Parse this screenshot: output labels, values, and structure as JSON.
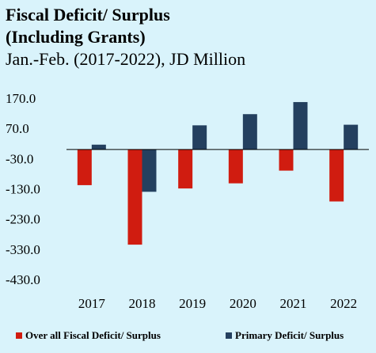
{
  "header": {
    "title_line1": "Fiscal Deficit/ Surplus",
    "title_line2": "(Including Grants)",
    "subtitle": "Jan.-Feb. (2017-2022), JD Million"
  },
  "legend": {
    "series1_label": "Over all Fiscal Deficit/ Surplus",
    "series2_label": "Primary Deficit/ Surplus"
  },
  "colors": {
    "background": "#d9f3fb",
    "series1": "#d01c10",
    "series2": "#24405f"
  },
  "chart_data": {
    "type": "bar",
    "categories": [
      "2017",
      "2018",
      "2019",
      "2020",
      "2021",
      "2022"
    ],
    "series": [
      {
        "name": "Over all Fiscal Deficit/ Surplus",
        "values": [
          -118,
          -315,
          -129,
          -112,
          -70,
          -172
        ]
      },
      {
        "name": "Primary Deficit/ Surplus",
        "values": [
          16,
          -140,
          80,
          117,
          157,
          82
        ]
      }
    ],
    "yticks": [
      "170.0",
      "70.0",
      "-30.0",
      "-130.0",
      "-230.0",
      "-330.0",
      "-430.0"
    ],
    "ylim": [
      -430,
      170
    ],
    "grid": false,
    "legend_position": "bottom"
  }
}
